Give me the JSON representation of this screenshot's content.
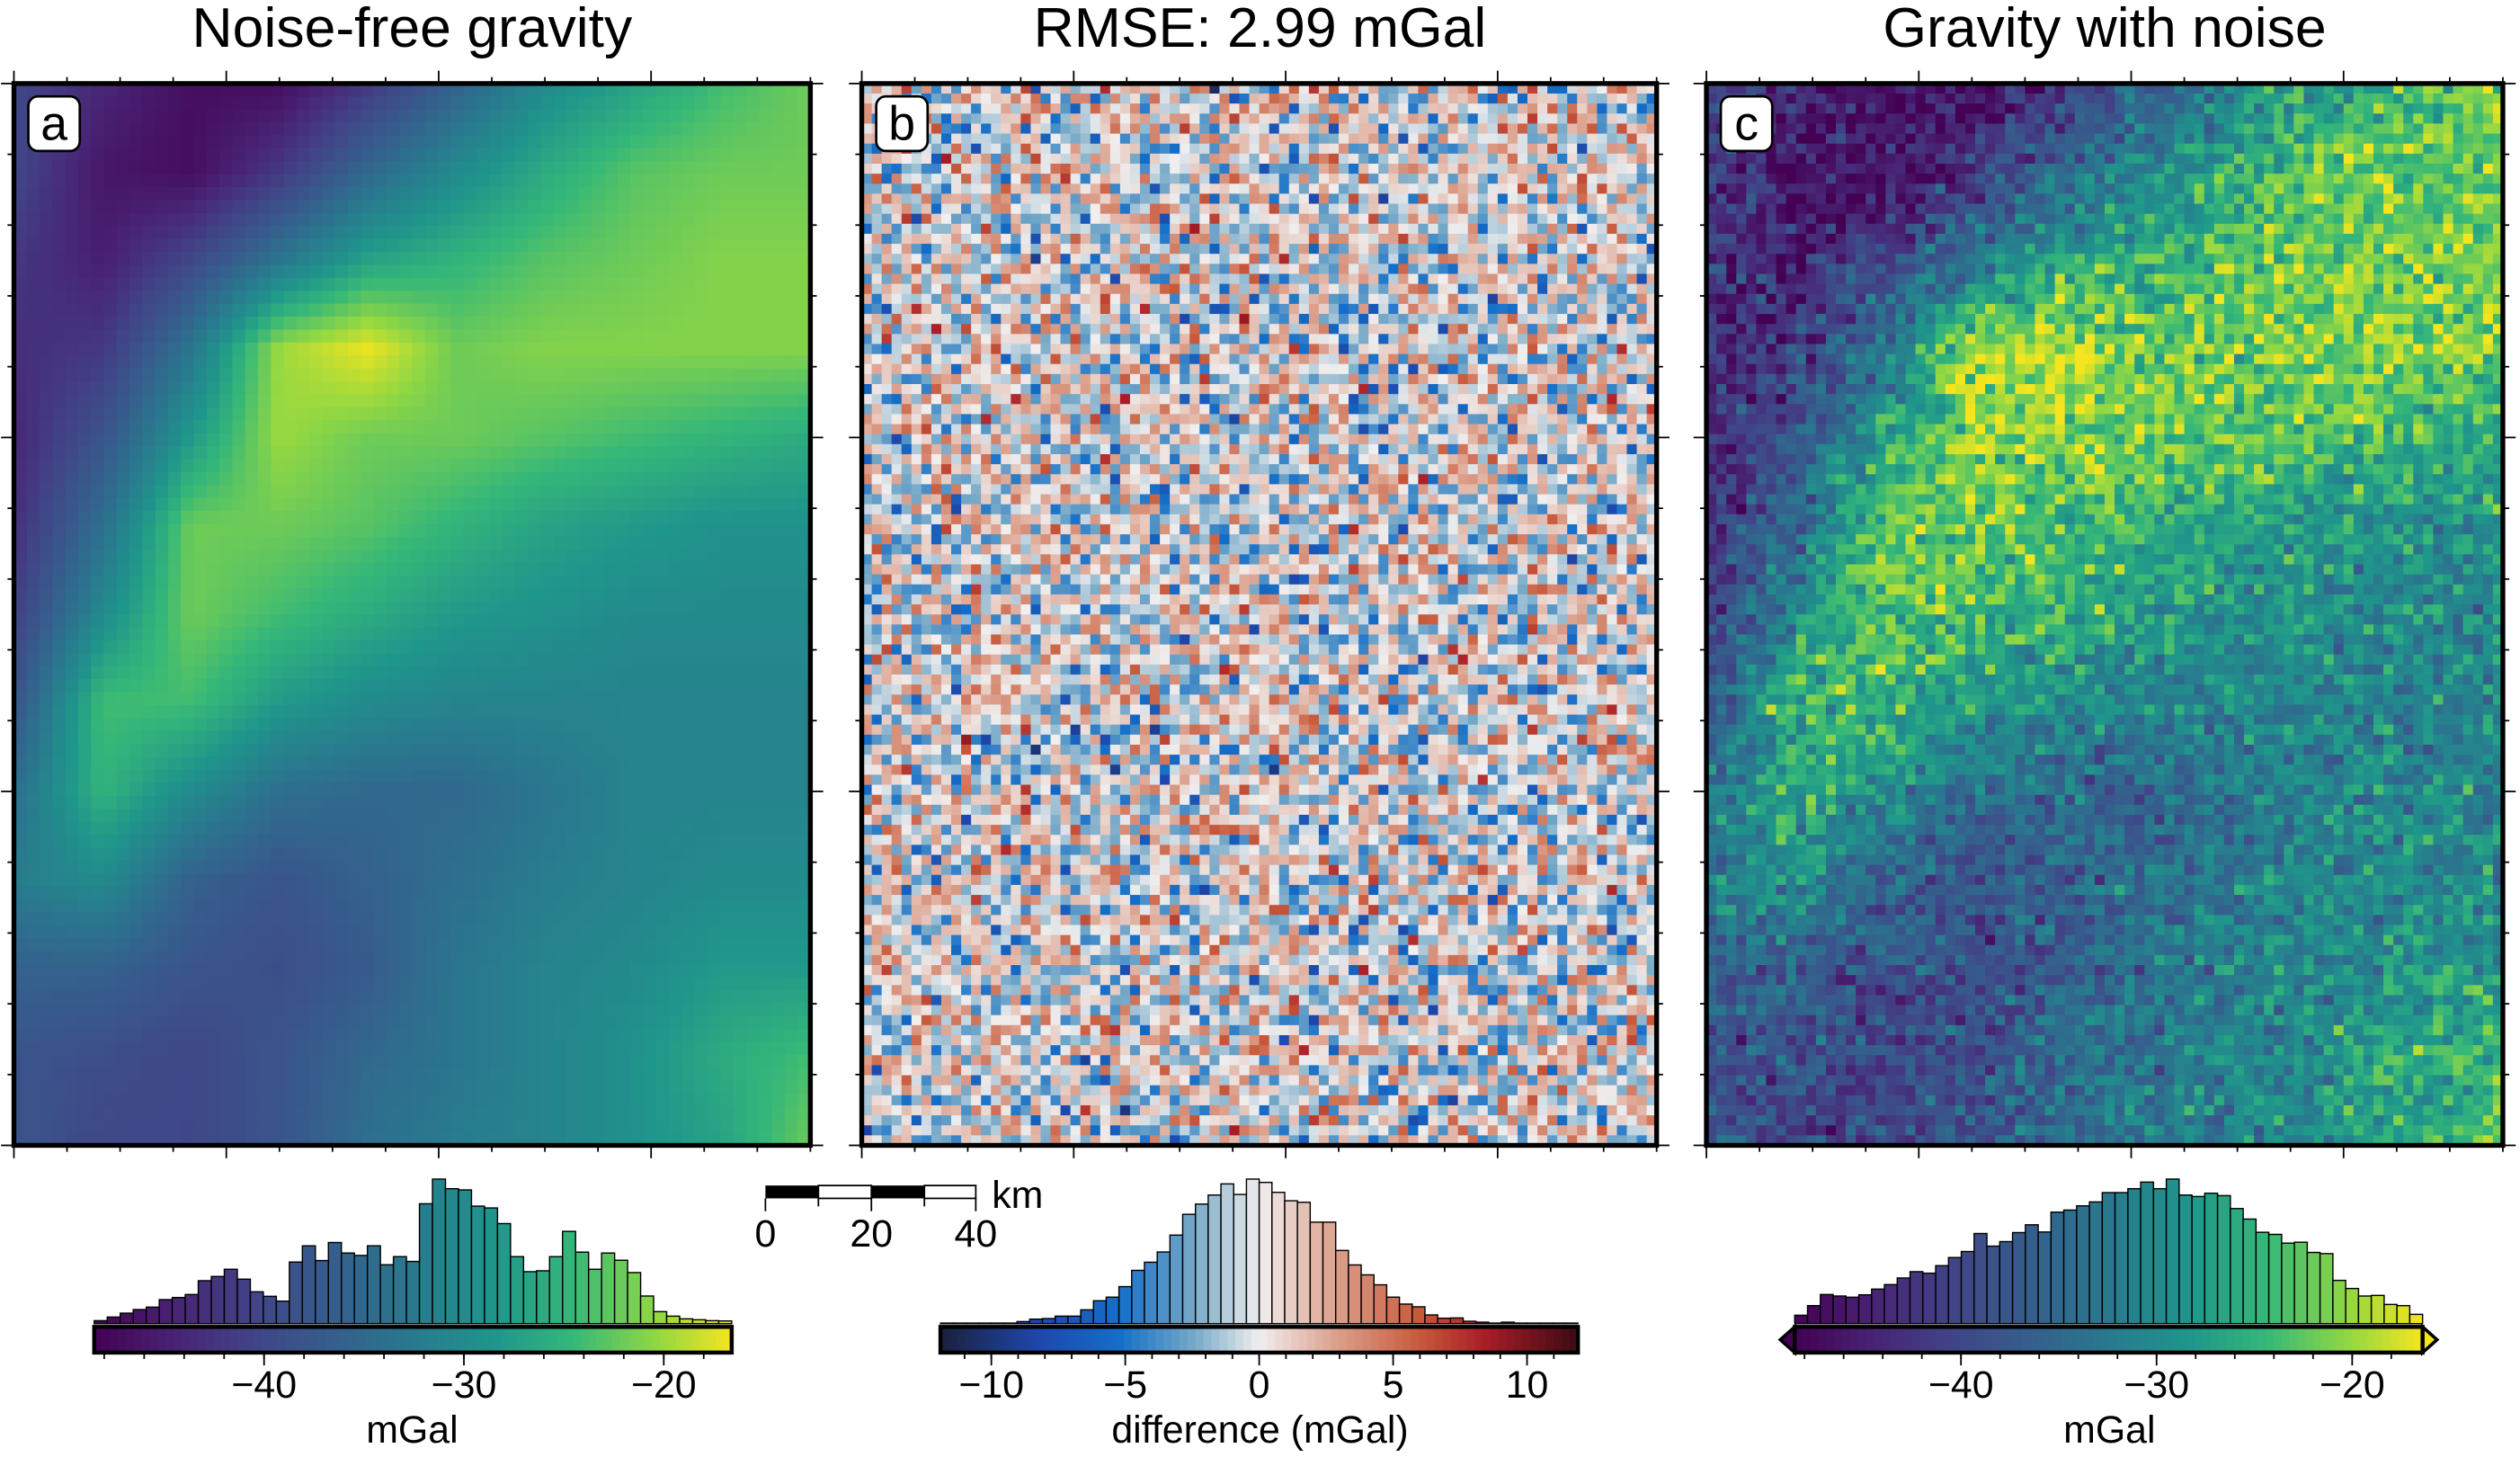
{
  "panels": [
    {
      "id": "a",
      "label": "a",
      "title": "Noise-free gravity",
      "colormap": "viridis"
    },
    {
      "id": "b",
      "label": "b",
      "title": "RMSE: 2.99 mGal",
      "colormap": "diverging blue-white-red"
    },
    {
      "id": "c",
      "label": "c",
      "title": "Gravity with noise",
      "colormap": "viridis"
    }
  ],
  "scalebar": {
    "unit": "km",
    "ticks": [
      "0",
      "20",
      "40"
    ]
  },
  "chart_data": [
    {
      "type": "heatmap",
      "panel": "a",
      "title": "Noise-free gravity",
      "unit": "mGal",
      "range": [
        -48.5,
        -16.6
      ],
      "grid_estimate_rows_top_to_bottom": [
        [
          -40,
          -44,
          -47,
          -47,
          -42,
          -36,
          -30,
          -27,
          -24,
          -22
        ],
        [
          -40,
          -46,
          -47,
          -42,
          -35,
          -30,
          -26,
          -23,
          -22,
          -22
        ],
        [
          -42,
          -45,
          -40,
          -33,
          -27,
          -25,
          -23,
          -22,
          -21,
          -21
        ],
        [
          -43,
          -42,
          -33,
          -20,
          -17,
          -22,
          -21,
          -21,
          -21,
          -21
        ],
        [
          -44,
          -38,
          -28,
          -20,
          -22,
          -22,
          -23,
          -24,
          -25,
          -26
        ],
        [
          -43,
          -34,
          -22,
          -22,
          -23,
          -25,
          -27,
          -28,
          -29,
          -29
        ],
        [
          -41,
          -30,
          -22,
          -24,
          -26,
          -28,
          -29,
          -30,
          -30,
          -30
        ],
        [
          -38,
          -24,
          -24,
          -28,
          -30,
          -31,
          -31,
          -31,
          -31,
          -31
        ],
        [
          -34,
          -25,
          -30,
          -34,
          -35,
          -35,
          -33,
          -31,
          -31,
          -31
        ],
        [
          -32,
          -30,
          -36,
          -38,
          -36,
          -34,
          -32,
          -31,
          -30,
          -30
        ],
        [
          -36,
          -36,
          -38,
          -39,
          -37,
          -33,
          -31,
          -30,
          -28,
          -28
        ],
        [
          -38,
          -39,
          -40,
          -38,
          -35,
          -33,
          -31,
          -29,
          -26,
          -24
        ],
        [
          -38,
          -40,
          -40,
          -38,
          -34,
          -32,
          -31,
          -29,
          -27,
          -22
        ]
      ],
      "colorbar": {
        "label": "mGal",
        "range": [
          -48.5,
          -16.6
        ],
        "ticks": [
          "−40",
          "−30",
          "−20"
        ],
        "tick_values": [
          -40,
          -30,
          -20
        ],
        "extend": "none"
      },
      "histogram": [
        10,
        22,
        35,
        47,
        55,
        80,
        87,
        97,
        143,
        157,
        181,
        148,
        106,
        91,
        75,
        205,
        259,
        210,
        270,
        235,
        227,
        259,
        196,
        223,
        207,
        399,
        481,
        449,
        445,
        391,
        385,
        333,
        223,
        173,
        176,
        223,
        307,
        238,
        181,
        235,
        211,
        170,
        92,
        40,
        25,
        16,
        13,
        10,
        9
      ]
    },
    {
      "type": "heatmap",
      "panel": "b",
      "title": "RMSE: 2.99 mGal",
      "unit": "mGal",
      "rmse": 2.99,
      "colorbar": {
        "label": "difference (mGal)",
        "range": [
          -11.9,
          11.9
        ],
        "ticks": [
          "−10",
          "−5",
          "0",
          "5",
          "10"
        ],
        "tick_values": [
          -10,
          -5,
          0,
          5,
          10
        ],
        "extend": "none"
      },
      "histogram": [
        2,
        2,
        2,
        2,
        2,
        2,
        7,
        15,
        17,
        25,
        25,
        46,
        76,
        88,
        123,
        177,
        204,
        238,
        294,
        363,
        397,
        427,
        464,
        429,
        480,
        469,
        436,
        408,
        403,
        337,
        337,
        243,
        195,
        162,
        129,
        88,
        65,
        56,
        29,
        18,
        19,
        8,
        5,
        2,
        5,
        2,
        2,
        2,
        2,
        2
      ]
    },
    {
      "type": "heatmap",
      "panel": "c",
      "title": "Gravity with noise",
      "unit": "mGal",
      "noise_rmse": 2.99,
      "colorbar": {
        "label": "mGal",
        "range": [
          -48.5,
          -16.4
        ],
        "ticks": [
          "−40",
          "−30",
          "−20"
        ],
        "tick_values": [
          -40,
          -30,
          -20
        ],
        "extend": "both"
      },
      "histogram": [
        28,
        60,
        97,
        92,
        88,
        96,
        115,
        130,
        152,
        173,
        168,
        193,
        220,
        240,
        300,
        258,
        273,
        303,
        329,
        305,
        371,
        378,
        392,
        405,
        436,
        436,
        449,
        471,
        449,
        481,
        428,
        423,
        434,
        426,
        383,
        348,
        304,
        297,
        268,
        271,
        237,
        233,
        144,
        117,
        92,
        94,
        64,
        60,
        31
      ]
    }
  ]
}
